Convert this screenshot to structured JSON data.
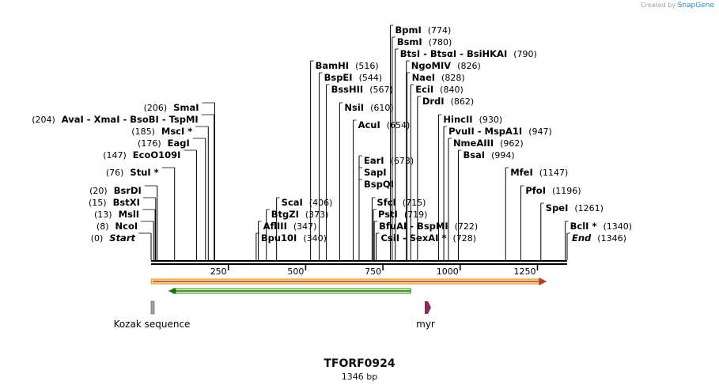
{
  "credit": {
    "prefix": "Created by",
    "brand": "SnapGene"
  },
  "plasmid": {
    "name": "TFORF0924",
    "size_label": "1346 bp",
    "length": 1346
  },
  "axis": {
    "ticks": [
      250,
      500,
      750,
      1000,
      1250
    ]
  },
  "features": [
    {
      "name": "Kozak sequence",
      "type": "kozak",
      "start": 1,
      "end": 7,
      "color": "#9aa3b3"
    },
    {
      "name": "myr",
      "type": "myr",
      "start": 910,
      "end": 925,
      "color": "#8a2a5a"
    }
  ],
  "orf": {
    "color": "#e8a03a",
    "fill": "#f5d7a0"
  },
  "inner_orf": {
    "color": "#3a9a20"
  },
  "sites": [
    {
      "pos": 0,
      "text": "Start",
      "pos_label": "(0)",
      "italic": true
    },
    {
      "pos": 8,
      "text": "NcoI",
      "pos_label": "(8)"
    },
    {
      "pos": 13,
      "text": "MslI",
      "pos_label": "(13)"
    },
    {
      "pos": 15,
      "text": "BstXI",
      "pos_label": "(15)"
    },
    {
      "pos": 20,
      "text": "BsrDI",
      "pos_label": "(20)"
    },
    {
      "pos": 76,
      "text": "StuI *",
      "pos_label": "(76)"
    },
    {
      "pos": 147,
      "text": "EcoO109I",
      "pos_label": "(147)"
    },
    {
      "pos": 176,
      "text": "EagI",
      "pos_label": "(176)"
    },
    {
      "pos": 185,
      "text": "MscI *",
      "pos_label": "(185)"
    },
    {
      "pos": 204,
      "text": "AvaI  - XmaI  - BsoBI  - TspMI",
      "pos_label": "(204)"
    },
    {
      "pos": 206,
      "text": "SmaI",
      "pos_label": "(206)"
    },
    {
      "pos": 340,
      "text": "Bpu10I",
      "pos_label": "(340)"
    },
    {
      "pos": 347,
      "text": "AflIII",
      "pos_label": "(347)"
    },
    {
      "pos": 373,
      "text": "BtgZI",
      "pos_label": "(373)"
    },
    {
      "pos": 406,
      "text": "ScaI",
      "pos_label": "(406)"
    },
    {
      "pos": 516,
      "text": "BamHI",
      "pos_label": "(516)"
    },
    {
      "pos": 544,
      "text": "BspEI",
      "pos_label": "(544)"
    },
    {
      "pos": 567,
      "text": "BssHII",
      "pos_label": "(567)"
    },
    {
      "pos": 610,
      "text": "NsiI",
      "pos_label": "(610)"
    },
    {
      "pos": 654,
      "text": "AcuI",
      "pos_label": "(654)"
    },
    {
      "pos": 673,
      "text": "EarI",
      "pos_label": "(673)"
    },
    {
      "pos": 673,
      "text": "SapI",
      "pos_label": ""
    },
    {
      "pos": 673,
      "text": "BspQI",
      "pos_label": ""
    },
    {
      "pos": 715,
      "text": "SfcI",
      "pos_label": "(715)"
    },
    {
      "pos": 719,
      "text": "PstI",
      "pos_label": "(719)"
    },
    {
      "pos": 722,
      "text": "BfuAI  - BspMI",
      "pos_label": "(722)"
    },
    {
      "pos": 728,
      "text": "CsiI  - SexAI *",
      "pos_label": "(728)"
    },
    {
      "pos": 774,
      "text": "BpmI",
      "pos_label": "(774)"
    },
    {
      "pos": 780,
      "text": "BsmI",
      "pos_label": "(780)"
    },
    {
      "pos": 790,
      "text": "BtsI  - BtsαI  - BsiHKAI",
      "pos_label": "(790)"
    },
    {
      "pos": 826,
      "text": "NgoMIV",
      "pos_label": "(826)"
    },
    {
      "pos": 828,
      "text": "NaeI",
      "pos_label": "(828)"
    },
    {
      "pos": 840,
      "text": "EciI",
      "pos_label": "(840)"
    },
    {
      "pos": 862,
      "text": "DrdI",
      "pos_label": "(862)"
    },
    {
      "pos": 930,
      "text": "HincII",
      "pos_label": "(930)"
    },
    {
      "pos": 947,
      "text": "PvuII  - MspA1I",
      "pos_label": "(947)"
    },
    {
      "pos": 962,
      "text": "NmeAIII",
      "pos_label": "(962)"
    },
    {
      "pos": 994,
      "text": "BsaI",
      "pos_label": "(994)"
    },
    {
      "pos": 1147,
      "text": "MfeI",
      "pos_label": "(1147)"
    },
    {
      "pos": 1196,
      "text": "PfoI",
      "pos_label": "(1196)"
    },
    {
      "pos": 1261,
      "text": "SpeI",
      "pos_label": "(1261)"
    },
    {
      "pos": 1340,
      "text": "BclI *",
      "pos_label": "(1340)"
    },
    {
      "pos": 1346,
      "text": "End",
      "pos_label": "(1346)",
      "italic": true
    }
  ]
}
